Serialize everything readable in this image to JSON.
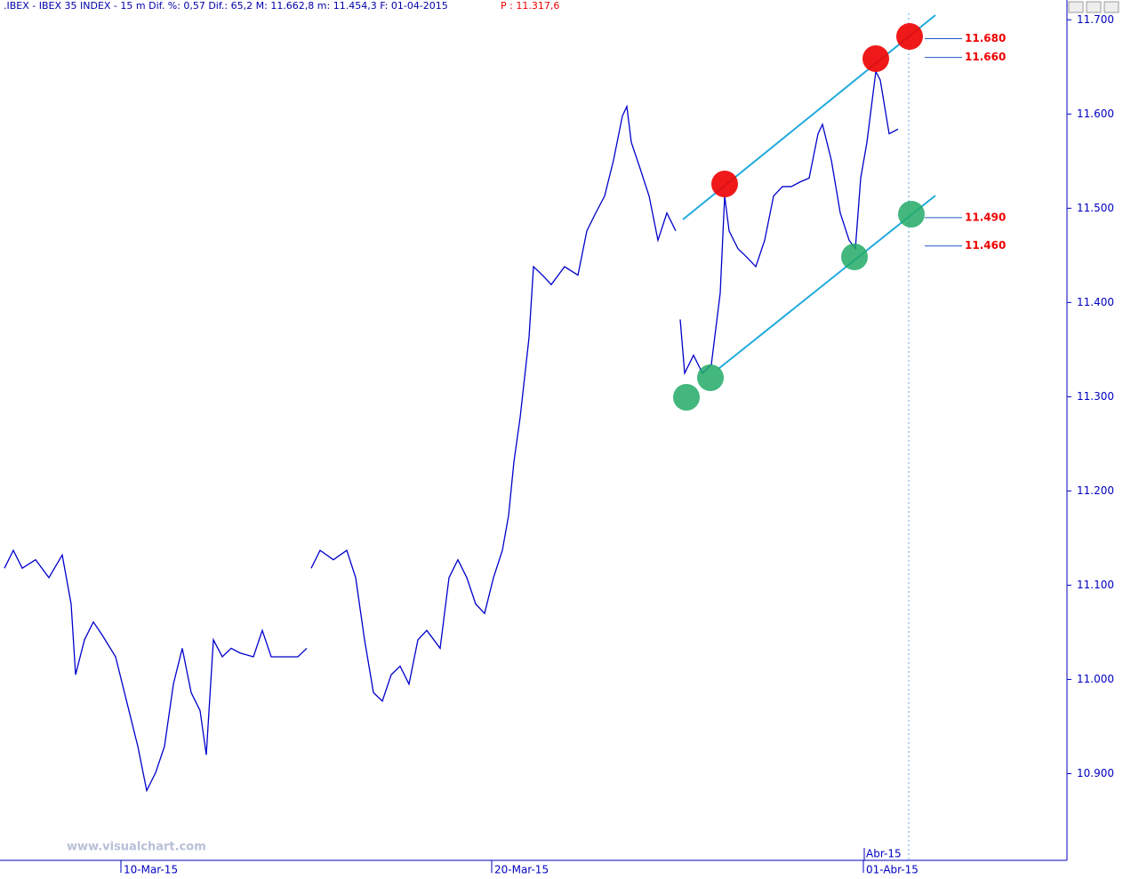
{
  "chart_data": {
    "type": "line",
    "header": ".IBEX - IBEX 35 INDEX -  15 m Dif. %: 0,57 Dif.: 65,2 M: 11.662,8 m: 11.454,3 F: 01-04-2015",
    "last_price": "P : 11.317,6",
    "watermark": "www.visualchart.com",
    "xlim": [
      0,
      600
    ],
    "ylim": [
      10.808,
      11.721
    ],
    "yticks": [
      {
        "value": 10.9,
        "label": "10.900"
      },
      {
        "value": 11.0,
        "label": "11.000"
      },
      {
        "value": 11.1,
        "label": "11.100"
      },
      {
        "value": 11.2,
        "label": "11.200"
      },
      {
        "value": 11.3,
        "label": "11.300"
      },
      {
        "value": 11.4,
        "label": "11.400"
      },
      {
        "value": 11.5,
        "label": "11.500"
      },
      {
        "value": 11.6,
        "label": "11.600"
      },
      {
        "value": 11.7,
        "label": "11.700"
      }
    ],
    "xticks": [
      {
        "value": 68,
        "label": "10-Mar-15"
      },
      {
        "value": 276.5,
        "label": "20-Mar-15"
      },
      {
        "value": 485.5,
        "label": "01-Abr-15"
      }
    ],
    "xticks_upper": [
      {
        "value": 486,
        "label": "Abr-15"
      }
    ],
    "series": [
      {
        "name": "IBEX 35",
        "color": "#0000cc",
        "x": [
          2.5,
          7.5,
          12.5,
          20,
          27.5,
          35,
          40,
          42.5,
          47.5,
          52.5,
          57.5,
          65,
          72.5,
          77.5,
          82.5,
          87.5,
          92.5,
          97.5,
          102.5,
          107.5,
          112.5,
          116,
          120,
          125,
          130,
          135,
          142.5,
          147.5,
          152.5,
          160,
          167.5,
          172.5,
          173,
          175,
          180,
          187.5,
          195,
          200,
          205,
          210,
          215,
          220,
          225,
          230,
          235,
          240,
          247.5,
          252.5,
          257.5,
          262.5,
          267.5,
          272.5,
          277.5,
          282.5,
          286,
          289,
          292.5,
          297.5,
          300,
          305,
          310,
          317.5,
          325,
          330,
          335,
          340,
          345,
          350,
          352.5,
          355,
          360,
          365,
          370,
          375,
          380,
          380.5,
          382.5,
          385,
          390,
          395,
          400,
          405,
          407.5,
          410,
          415,
          420,
          425,
          430,
          435,
          440,
          445,
          450,
          455,
          460,
          462.5,
          467.5,
          472.5,
          477.5,
          481,
          484,
          487.5,
          492.5,
          495,
          500,
          505
        ],
        "values": [
          11.118,
          11.137,
          11.118,
          11.127,
          11.108,
          11.132,
          11.08,
          11.005,
          11.042,
          11.061,
          11.047,
          11.024,
          10.967,
          10.929,
          10.882,
          10.901,
          10.929,
          10.995,
          11.033,
          10.986,
          10.967,
          10.92,
          11.042,
          11.024,
          11.033,
          11.028,
          11.024,
          11.052,
          11.024,
          11.024,
          11.024,
          11.033,
          null,
          11.118,
          11.137,
          11.127,
          11.137,
          11.108,
          11.042,
          10.986,
          10.977,
          11.005,
          11.014,
          10.995,
          11.042,
          11.052,
          11.033,
          11.108,
          11.127,
          11.108,
          11.08,
          11.07,
          11.108,
          11.137,
          11.174,
          11.231,
          11.278,
          11.363,
          11.438,
          11.429,
          11.419,
          11.438,
          11.429,
          11.476,
          11.495,
          11.513,
          11.551,
          11.598,
          11.608,
          11.57,
          11.542,
          11.513,
          11.466,
          11.495,
          11.476,
          null,
          11.382,
          11.325,
          11.344,
          11.325,
          11.334,
          11.41,
          11.513,
          11.476,
          11.457,
          11.448,
          11.438,
          11.466,
          11.513,
          11.523,
          11.523,
          11.528,
          11.532,
          11.579,
          11.589,
          11.551,
          11.495,
          11.466,
          11.457,
          11.532,
          11.57,
          11.645,
          11.636,
          11.579,
          11.584
        ]
      }
    ],
    "levels": [
      {
        "value": 11.68,
        "label": "11.680",
        "color": "#ee0000"
      },
      {
        "value": 11.66,
        "label": "11.660",
        "color": "#ee0000"
      },
      {
        "value": 11.49,
        "label": "11.490",
        "color": "#ee0000"
      },
      {
        "value": 11.46,
        "label": "11.460",
        "color": "#ee0000"
      }
    ]
  }
}
